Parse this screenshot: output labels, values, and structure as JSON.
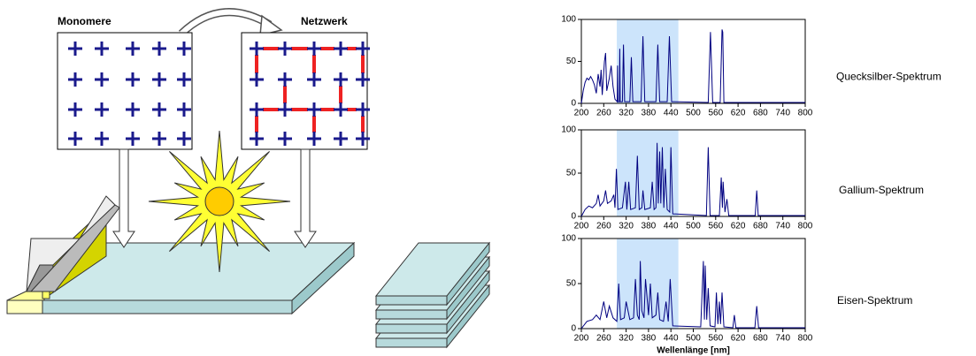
{
  "diagram": {
    "labels": [
      "Monomere",
      "Netzwerk"
    ]
  },
  "chart_data": [
    {
      "type": "line",
      "label": "Quecksilber-Spektrum",
      "color": "#000080",
      "highlight": {
        "range": [
          295,
          460
        ],
        "color": "#cce4fb"
      },
      "xlim": [
        200,
        800
      ],
      "ylim": [
        0,
        100
      ],
      "xticks": [
        200,
        260,
        320,
        380,
        440,
        500,
        560,
        620,
        680,
        740,
        800
      ],
      "yticks": [
        0,
        50,
        100
      ],
      "x": [
        200,
        205,
        210,
        215,
        220,
        225,
        230,
        235,
        240,
        245,
        250,
        253,
        256,
        262,
        265,
        268,
        275,
        280,
        285,
        290,
        296,
        297,
        298,
        302,
        303,
        304,
        310,
        313,
        316,
        330,
        334,
        338,
        360,
        365,
        370,
        400,
        405,
        410,
        430,
        436,
        442,
        540,
        546,
        552,
        572,
        577,
        579,
        582,
        800
      ],
      "values": [
        0,
        15,
        25,
        30,
        28,
        32,
        28,
        22,
        12,
        35,
        20,
        40,
        10,
        50,
        60,
        15,
        30,
        45,
        20,
        5,
        2,
        45,
        2,
        2,
        65,
        2,
        2,
        70,
        2,
        2,
        55,
        2,
        2,
        80,
        2,
        2,
        70,
        2,
        2,
        80,
        2,
        1,
        85,
        1,
        1,
        88,
        85,
        1,
        1
      ]
    },
    {
      "type": "line",
      "label": "Gallium-Spektrum",
      "color": "#000080",
      "highlight": {
        "range": [
          295,
          460
        ],
        "color": "#cce4fb"
      },
      "xlim": [
        200,
        800
      ],
      "ylim": [
        0,
        100
      ],
      "xticks": [
        200,
        260,
        320,
        380,
        440,
        500,
        560,
        620,
        680,
        740,
        800
      ],
      "yticks": [
        0,
        50,
        100
      ],
      "x": [
        200,
        210,
        220,
        230,
        240,
        245,
        250,
        260,
        265,
        270,
        280,
        287,
        290,
        294,
        298,
        310,
        318,
        322,
        327,
        332,
        345,
        350,
        355,
        362,
        365,
        370,
        385,
        390,
        395,
        400,
        403,
        406,
        410,
        413,
        417,
        421,
        425,
        430,
        437,
        440,
        445,
        535,
        540,
        545,
        570,
        575,
        578,
        580,
        585,
        590,
        595,
        666,
        670,
        674,
        800
      ],
      "values": [
        0,
        8,
        12,
        10,
        15,
        25,
        12,
        18,
        30,
        15,
        18,
        25,
        10,
        55,
        8,
        10,
        40,
        8,
        40,
        8,
        10,
        70,
        8,
        10,
        30,
        8,
        10,
        40,
        8,
        10,
        85,
        15,
        75,
        15,
        80,
        10,
        55,
        8,
        5,
        80,
        3,
        1,
        80,
        1,
        1,
        45,
        10,
        40,
        5,
        20,
        1,
        1,
        30,
        1,
        1
      ]
    },
    {
      "type": "line",
      "label": "Eisen-Spektrum",
      "xlabel": "Wellenlänge [nm]",
      "color": "#000080",
      "highlight": {
        "range": [
          295,
          460
        ],
        "color": "#cce4fb"
      },
      "xlim": [
        200,
        800
      ],
      "ylim": [
        0,
        100
      ],
      "xticks": [
        200,
        260,
        320,
        380,
        440,
        500,
        560,
        620,
        680,
        740,
        800
      ],
      "yticks": [
        0,
        50,
        100
      ],
      "x": [
        200,
        215,
        230,
        240,
        250,
        260,
        268,
        275,
        285,
        295,
        300,
        305,
        315,
        320,
        330,
        340,
        345,
        350,
        355,
        358,
        362,
        368,
        372,
        375,
        380,
        385,
        390,
        400,
        405,
        410,
        420,
        427,
        433,
        438,
        445,
        520,
        527,
        530,
        532,
        536,
        540,
        545,
        558,
        562,
        566,
        570,
        573,
        577,
        582,
        606,
        610,
        614,
        665,
        670,
        675,
        800
      ],
      "values": [
        0,
        8,
        10,
        15,
        10,
        30,
        12,
        25,
        12,
        8,
        50,
        10,
        12,
        30,
        10,
        12,
        55,
        15,
        10,
        75,
        20,
        12,
        55,
        40,
        15,
        50,
        12,
        15,
        40,
        10,
        8,
        30,
        8,
        55,
        3,
        2,
        75,
        10,
        70,
        10,
        45,
        3,
        2,
        40,
        5,
        30,
        5,
        40,
        2,
        1,
        15,
        1,
        1,
        25,
        1,
        1
      ]
    }
  ]
}
